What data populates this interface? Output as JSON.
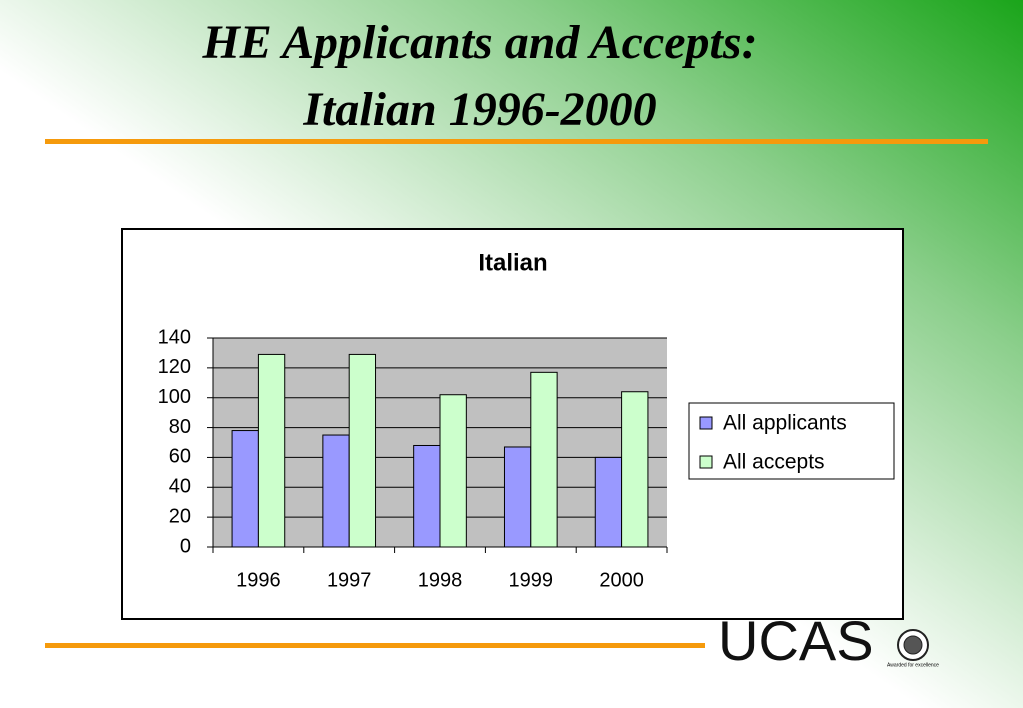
{
  "slide": {
    "title": [
      "HE Applicants and Accepts:",
      "Italian 1996-2000"
    ]
  },
  "chart_data": {
    "type": "bar",
    "title": "Italian",
    "categories": [
      "1996",
      "1997",
      "1998",
      "1999",
      "2000"
    ],
    "series": [
      {
        "name": "All applicants",
        "color": "#9999ff",
        "values": [
          78,
          75,
          68,
          67,
          60
        ]
      },
      {
        "name": "All accepts",
        "color": "#ccffcc",
        "values": [
          129,
          129,
          102,
          117,
          104
        ]
      }
    ],
    "ylim": [
      0,
      140
    ],
    "yticks": [
      0,
      20,
      40,
      60,
      80,
      100,
      120,
      140
    ],
    "grid": true,
    "plot_background": "#c0c0c0",
    "legend": "right"
  },
  "logo": {
    "text": "UCAS",
    "tagline": "Awarded for excellence"
  }
}
